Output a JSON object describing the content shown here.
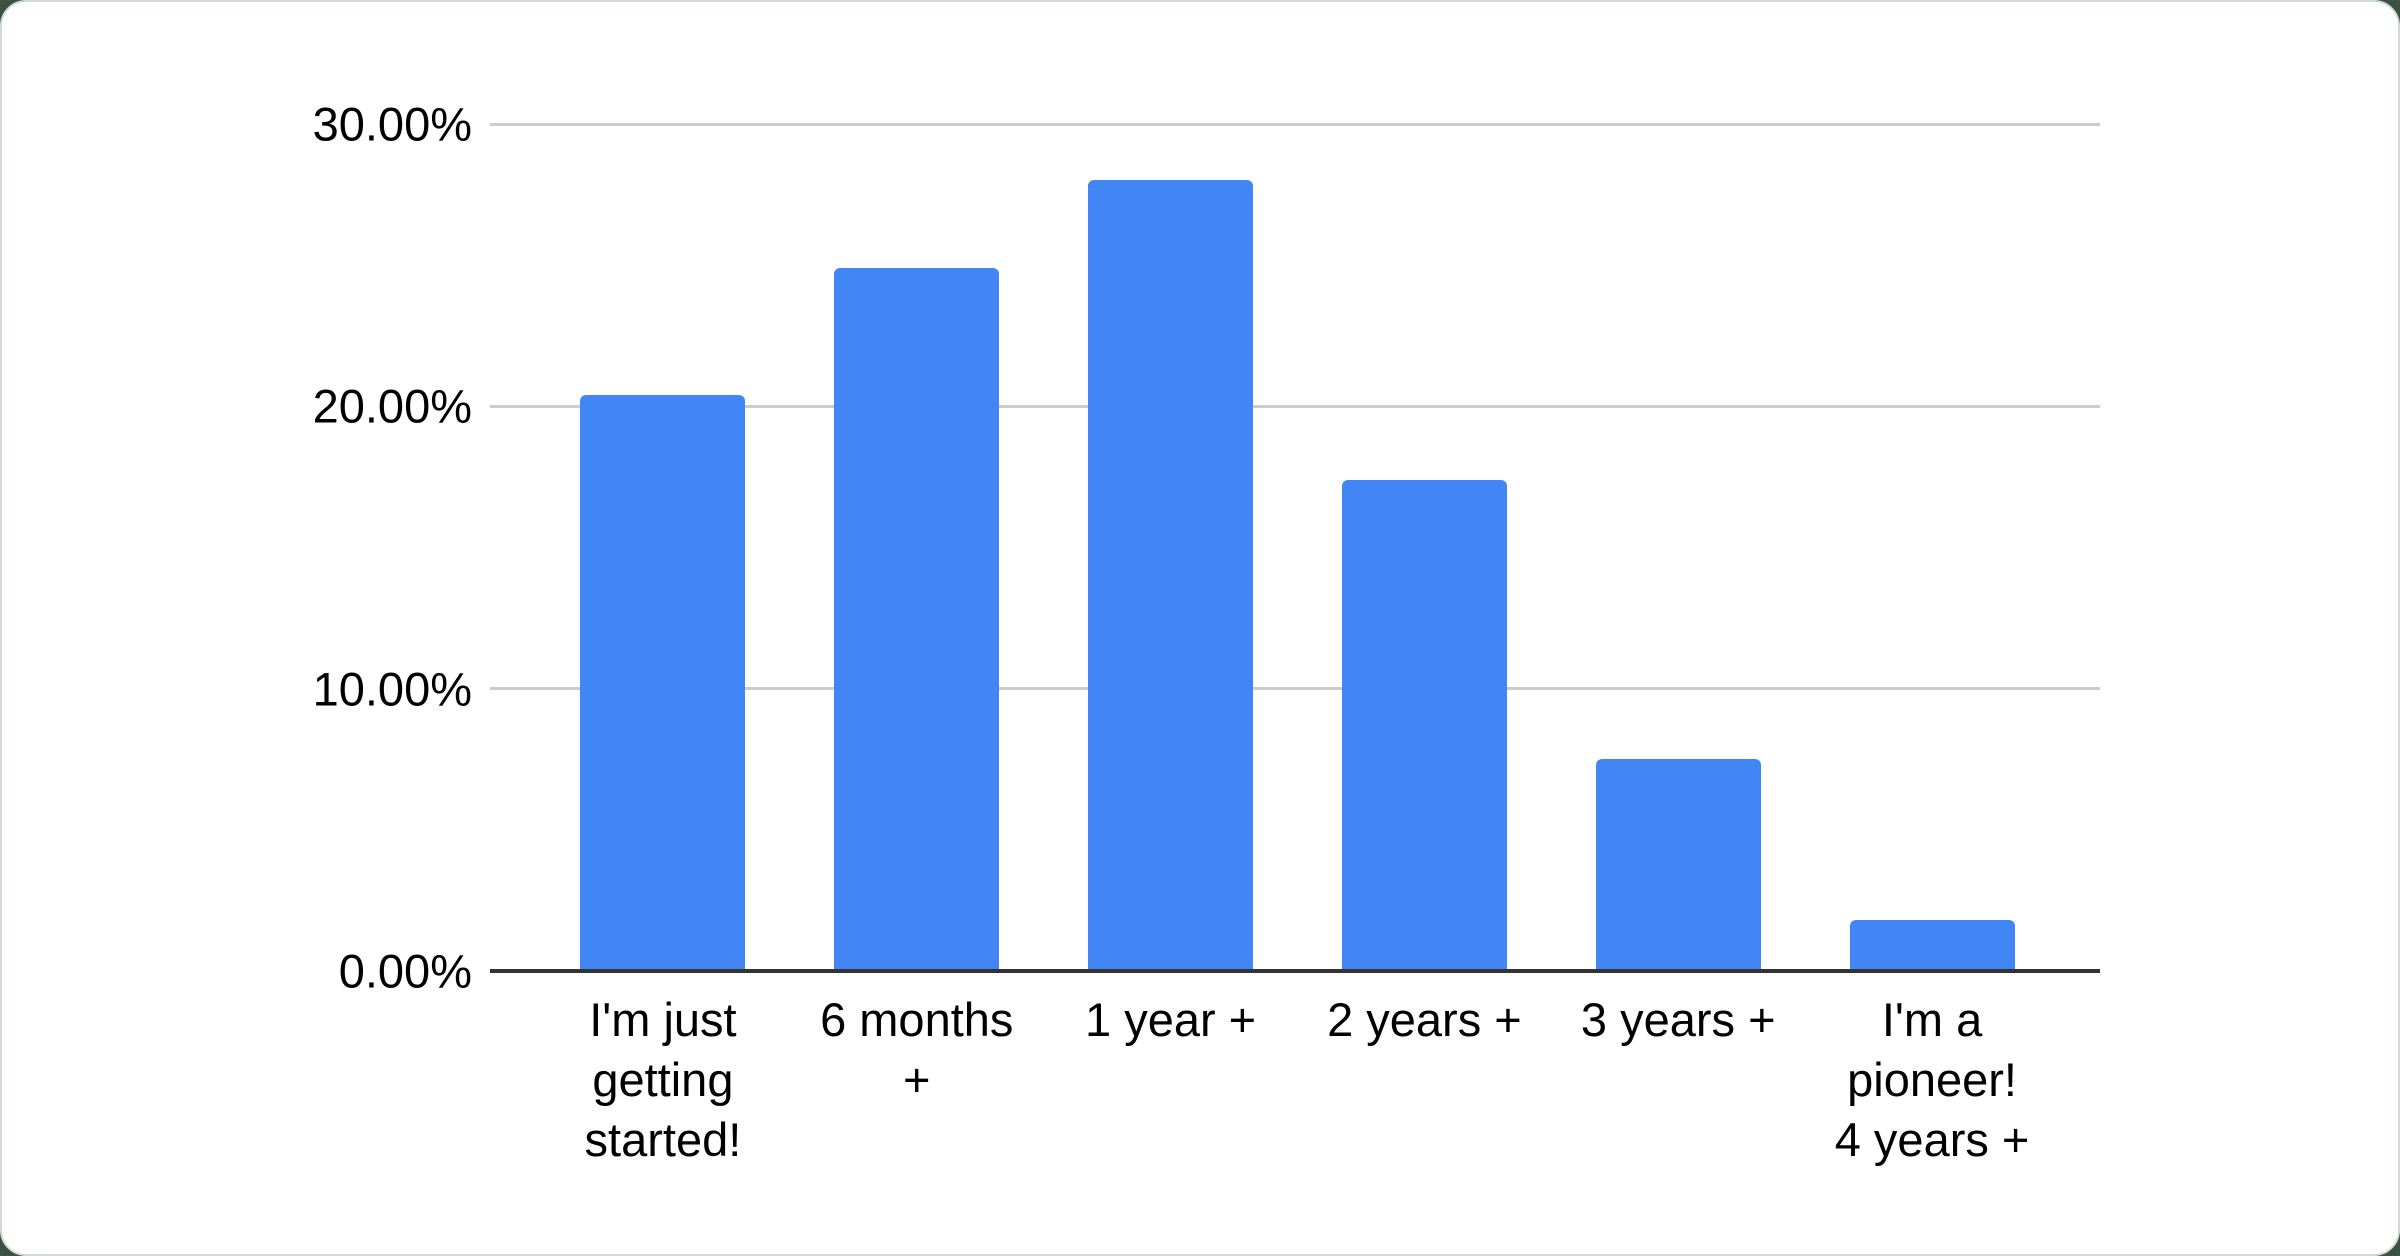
{
  "page": {
    "background_color": "#3b5243",
    "card_color": "#ffffff",
    "card_border_color": "#d3d9d3"
  },
  "chart_data": {
    "type": "bar",
    "title": "",
    "categories": [
      "I'm just getting started!",
      "6 months +",
      "1 year +",
      "2 years +",
      "3 years +",
      "I'm a pioneer! 4 years +"
    ],
    "category_tick_lines": [
      [
        "I'm just",
        "getting",
        "started!"
      ],
      [
        "6 months",
        "+"
      ],
      [
        "1 year +"
      ],
      [
        "2 years +"
      ],
      [
        "3 years +"
      ],
      [
        "I'm a",
        "pioneer!",
        "4 years +"
      ]
    ],
    "values": [
      20.4,
      24.9,
      28.0,
      17.4,
      7.5,
      1.8
    ],
    "value_unit": "%",
    "y_ticks": [
      {
        "value": 0,
        "label": "0.00%"
      },
      {
        "value": 10,
        "label": "10.00%"
      },
      {
        "value": 20,
        "label": "20.00%"
      },
      {
        "value": 30,
        "label": "30.00%"
      }
    ],
    "ylim": [
      0,
      30
    ],
    "grid": true,
    "legend_position": "none",
    "colors": {
      "bar": "#4285f4",
      "gridline": "#cccccc",
      "axis": "#333333",
      "tick_text": "#000000"
    }
  }
}
